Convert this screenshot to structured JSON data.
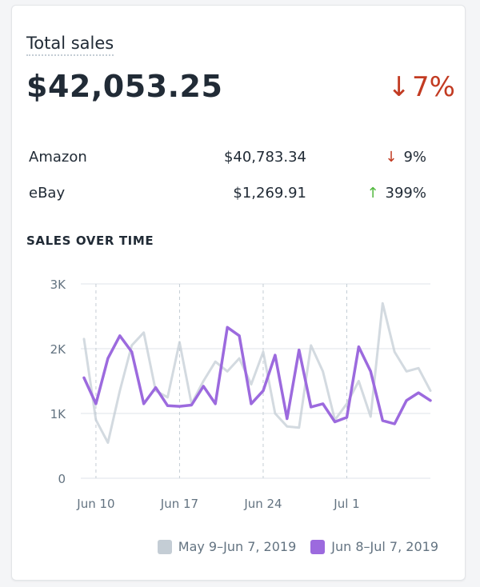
{
  "card": {
    "title": "Total sales",
    "total": "$42,053.25",
    "change_arrow": "↓",
    "change_value": "7%"
  },
  "channels": [
    {
      "name": "Amazon",
      "amount": "$40,783.34",
      "arrow": "↓",
      "pct": "9%",
      "direction": "down"
    },
    {
      "name": "eBay",
      "amount": "$1,269.91",
      "arrow": "↑",
      "pct": "399%",
      "direction": "up"
    }
  ],
  "section_title": "SALES OVER TIME",
  "colors": {
    "previous": "#c4cdd5",
    "current": "#9c6ade",
    "down": "#c23b22",
    "up": "#50b83c"
  },
  "chart_data": {
    "type": "line",
    "title": "",
    "xlabel": "",
    "ylabel": "",
    "ylim": [
      0,
      3000
    ],
    "yticks": [
      "0",
      "1K",
      "2K",
      "3K"
    ],
    "xticks": [
      "Jun 10",
      "Jun 17",
      "Jun 24",
      "Jul 1"
    ],
    "grid": true,
    "legend_position": "bottom-right",
    "series": [
      {
        "name": "May 9–Jun 7, 2019",
        "values": [
          2150,
          900,
          550,
          1350,
          2050,
          2250,
          1350,
          1250,
          2100,
          1150,
          1500,
          1800,
          1650,
          1850,
          1450,
          1950,
          1000,
          800,
          780,
          2050,
          1650,
          900,
          1150,
          1500,
          950,
          2700,
          1950,
          1650,
          1700,
          1350
        ]
      },
      {
        "name": "Jun 8–Jul 7, 2019",
        "values": [
          1550,
          1150,
          1850,
          2200,
          1950,
          1150,
          1400,
          1120,
          1110,
          1130,
          1420,
          1150,
          2330,
          2200,
          1150,
          1350,
          1900,
          920,
          1980,
          1100,
          1150,
          870,
          940,
          2030,
          1650,
          890,
          840,
          1200,
          1320,
          1200
        ]
      }
    ]
  }
}
